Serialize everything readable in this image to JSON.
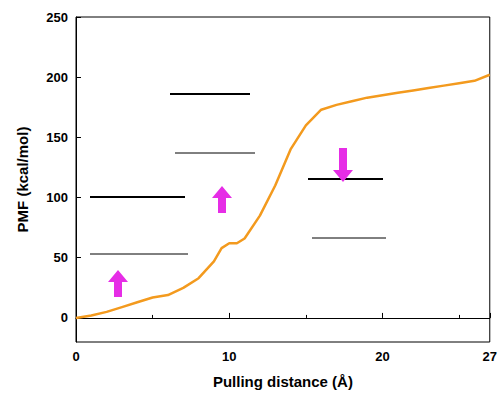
{
  "chart_data": {
    "type": "line",
    "x_label": "Pulling distance (Å)",
    "y_label": "PMF (kcal/mol)",
    "x": [
      0,
      1,
      2,
      3,
      4,
      5,
      6,
      7,
      8,
      9,
      9.5,
      10,
      10.5,
      11,
      12,
      13,
      14,
      15,
      16,
      17,
      18,
      19,
      20,
      21,
      22,
      23,
      24,
      25,
      26,
      27
    ],
    "values": [
      0,
      2,
      5,
      9,
      13,
      17,
      19,
      25,
      33,
      47,
      58,
      62,
      62,
      66,
      85,
      110,
      140,
      160,
      173,
      177,
      180,
      183,
      185,
      187,
      189,
      191,
      193,
      195,
      197,
      202
    ],
    "color": "#f39a1e",
    "xlim": [
      0,
      27
    ],
    "xticks": [
      0,
      10,
      20
    ],
    "ylim": [
      -20,
      250
    ],
    "yticks": [
      0,
      50,
      100,
      150,
      200,
      250
    ],
    "grid": false
  }
}
